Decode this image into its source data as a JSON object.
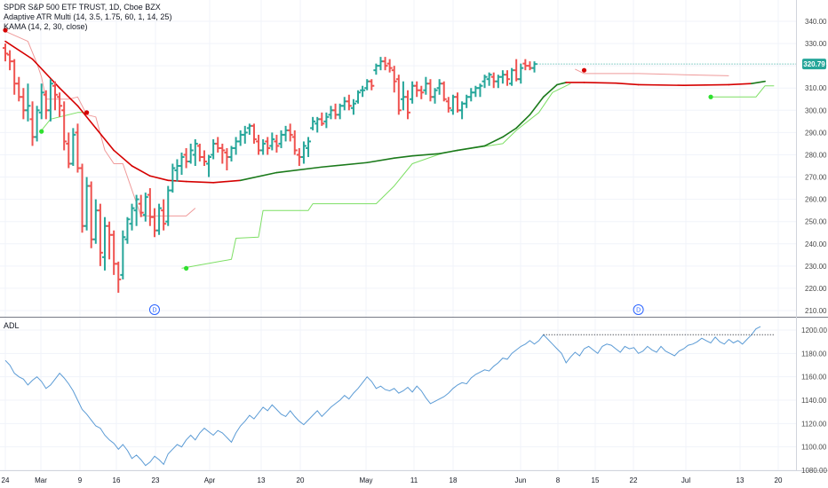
{
  "price_title": "SPDR S&P 500 ETF TRUST, 1D, Cboe BZX",
  "atr_label": "Adaptive ATR Multi (14, 3.5, 1.75, 60, 1, 14, 25)",
  "kama_label": "KAMA (14, 2, 30, close)",
  "adl_label": "ADL",
  "last_price_label": "320.79",
  "dividend_marker": "D",
  "colors": {
    "up": "#26a69a",
    "down": "#ef5350",
    "kama_up": "#1b7a1b",
    "kama_down": "#d50000",
    "atr_up": "#7ddf64",
    "atr_down": "#ef9a9a",
    "adl": "#5b9bd5",
    "dividend": "#2962ff",
    "grid": "#f0f3fa"
  },
  "chart_data": [
    {
      "type": "bar",
      "title": "SPDR S&P 500 ETF TRUST, 1D, Cboe BZX",
      "y_ticks": [
        210,
        220,
        230,
        240,
        250,
        260,
        270,
        280,
        290,
        300,
        310,
        320,
        330,
        340
      ],
      "ylim": [
        205,
        345
      ],
      "x_ticks": [
        "24",
        "Mar",
        "9",
        "16",
        "23",
        "Apr",
        "13",
        "20",
        "May",
        "11",
        "18",
        "Jun",
        "8",
        "15",
        "22",
        "Jul",
        "13",
        "20"
      ],
      "last_value": 320.79,
      "ohlc": [
        [
          328.0,
          330.0,
          322.0,
          325.5
        ],
        [
          325.0,
          327.0,
          318.0,
          322.0
        ],
        [
          322.0,
          323.0,
          307.0,
          312.0
        ],
        [
          312.0,
          315.0,
          304.0,
          306.0
        ],
        [
          306.0,
          310.0,
          296.0,
          300.0
        ],
        [
          300.0,
          312.0,
          295.0,
          302.0
        ],
        [
          296.0,
          304.0,
          284.0,
          288.0
        ],
        [
          288.0,
          302.0,
          286.0,
          300.0
        ],
        [
          299.0,
          312.0,
          296.0,
          308.0
        ],
        [
          307.0,
          309.0,
          296.0,
          300.0
        ],
        [
          300.0,
          314.0,
          295.0,
          312.0
        ],
        [
          311.0,
          313.0,
          300.0,
          307.0
        ],
        [
          306.0,
          308.0,
          297.0,
          302.0
        ],
        [
          300.0,
          304.0,
          282.0,
          286.0
        ],
        [
          285.0,
          290.0,
          274.0,
          276.0
        ],
        [
          276.0,
          292.0,
          275.0,
          289.0
        ],
        [
          290.0,
          294.0,
          272.0,
          274.0
        ],
        [
          274.0,
          276.0,
          245.0,
          248.0
        ],
        [
          248.0,
          270.0,
          246.0,
          266.0
        ],
        [
          266.0,
          268.0,
          238.0,
          242.0
        ],
        [
          242.0,
          260.0,
          240.0,
          255.0
        ],
        [
          255.0,
          258.0,
          230.0,
          236.0
        ],
        [
          234.0,
          252.0,
          228.0,
          248.0
        ],
        [
          248.0,
          250.0,
          233.0,
          244.0
        ],
        [
          244.0,
          246.0,
          226.0,
          231.0
        ],
        [
          231.0,
          232.0,
          218.0,
          224.0
        ],
        [
          226.0,
          246.0,
          224.0,
          243.0
        ],
        [
          242.0,
          252.0,
          240.0,
          251.0
        ],
        [
          249.0,
          258.0,
          246.0,
          256.0
        ],
        [
          255.0,
          262.0,
          248.0,
          260.0
        ],
        [
          258.0,
          262.0,
          252.0,
          254.0
        ],
        [
          253.0,
          263.0,
          250.0,
          261.0
        ],
        [
          262.0,
          265.0,
          248.0,
          252.0
        ],
        [
          252.0,
          256.0,
          243.0,
          246.0
        ],
        [
          246.0,
          258.0,
          244.0,
          256.0
        ],
        [
          255.0,
          260.0,
          246.0,
          249.0
        ],
        [
          250.0,
          266.0,
          248.0,
          264.0
        ],
        [
          264.0,
          276.0,
          263.0,
          274.0
        ],
        [
          273.0,
          278.0,
          268.0,
          275.0
        ],
        [
          275.0,
          281.0,
          271.0,
          279.0
        ],
        [
          280.0,
          283.0,
          274.0,
          277.0
        ],
        [
          277.0,
          285.0,
          276.0,
          282.0
        ],
        [
          280.0,
          287.0,
          275.0,
          285.0
        ],
        [
          284.0,
          285.0,
          277.0,
          279.0
        ],
        [
          279.0,
          282.0,
          275.0,
          277.0
        ],
        [
          276.0,
          280.0,
          270.0,
          279.0
        ],
        [
          280.0,
          287.0,
          278.0,
          285.0
        ],
        [
          285.0,
          288.0,
          281.0,
          283.0
        ],
        [
          283.0,
          285.0,
          276.0,
          282.0
        ],
        [
          281.0,
          283.0,
          273.0,
          279.0
        ],
        [
          279.0,
          284.0,
          277.0,
          283.0
        ],
        [
          283.0,
          288.0,
          280.0,
          286.0
        ],
        [
          286.0,
          291.0,
          284.0,
          289.0
        ],
        [
          289.0,
          293.0,
          285.0,
          290.0
        ],
        [
          292.0,
          294.0,
          289.0,
          293.0
        ],
        [
          293.0,
          294.0,
          285.0,
          287.0
        ],
        [
          286.0,
          289.0,
          280.0,
          282.0
        ],
        [
          282.0,
          287.0,
          280.0,
          285.0
        ],
        [
          286.0,
          288.0,
          280.0,
          283.0
        ],
        [
          284.0,
          290.0,
          282.0,
          287.0
        ],
        [
          286.0,
          289.0,
          281.0,
          284.0
        ],
        [
          285.0,
          291.0,
          283.0,
          289.0
        ],
        [
          289.0,
          293.0,
          286.0,
          291.0
        ],
        [
          291.0,
          294.0,
          286.0,
          289.0
        ],
        [
          288.0,
          291.0,
          280.0,
          282.0
        ],
        [
          280.0,
          283.0,
          275.0,
          279.0
        ],
        [
          279.0,
          286.0,
          276.0,
          284.0
        ],
        [
          283.0,
          288.0,
          279.0,
          286.0
        ],
        [
          292.0,
          297.0,
          291.0,
          295.0
        ],
        [
          294.0,
          297.0,
          290.0,
          296.0
        ],
        [
          296.0,
          299.0,
          293.0,
          294.0
        ],
        [
          295.0,
          299.0,
          292.0,
          297.0
        ],
        [
          298.0,
          302.0,
          296.0,
          300.0
        ],
        [
          300.0,
          303.0,
          296.0,
          298.0
        ],
        [
          298.0,
          303.0,
          296.0,
          302.0
        ],
        [
          302.0,
          306.0,
          300.0,
          304.0
        ],
        [
          304.0,
          307.0,
          300.0,
          302.0
        ],
        [
          301.0,
          305.0,
          298.0,
          303.0
        ],
        [
          304.0,
          309.0,
          303.0,
          308.0
        ],
        [
          309.0,
          311.0,
          306.0,
          309.0
        ],
        [
          310.0,
          314.0,
          309.0,
          313.0
        ],
        [
          313.0,
          314.0,
          309.0,
          311.0
        ],
        [
          318.0,
          321.0,
          316.0,
          320.0
        ],
        [
          320.0,
          324.0,
          318.0,
          322.0
        ],
        [
          322.0,
          324.0,
          318.0,
          320.0
        ],
        [
          321.0,
          323.0,
          317.0,
          319.0
        ],
        [
          318.0,
          320.0,
          308.0,
          313.0
        ],
        [
          314.0,
          316.0,
          298.0,
          300.0
        ],
        [
          305.0,
          313.0,
          300.0,
          306.0
        ],
        [
          306.0,
          309.0,
          296.0,
          299.0
        ],
        [
          305.0,
          313.0,
          303.0,
          311.0
        ],
        [
          311.0,
          313.0,
          306.0,
          309.0
        ],
        [
          309.0,
          311.0,
          305.0,
          308.0
        ],
        [
          309.0,
          315.0,
          307.0,
          312.0
        ],
        [
          312.0,
          314.0,
          304.0,
          306.0
        ],
        [
          306.0,
          310.0,
          303.0,
          309.0
        ],
        [
          310.0,
          314.0,
          307.0,
          312.0
        ],
        [
          312.0,
          313.0,
          304.0,
          305.0
        ],
        [
          304.0,
          306.0,
          299.0,
          301.0
        ],
        [
          300.0,
          307.0,
          298.0,
          306.0
        ],
        [
          306.0,
          308.0,
          299.0,
          300.0
        ],
        [
          300.0,
          304.0,
          296.0,
          303.0
        ],
        [
          303.0,
          307.0,
          301.0,
          306.0
        ],
        [
          306.0,
          310.0,
          304.0,
          308.0
        ],
        [
          308.0,
          311.0,
          306.0,
          310.0
        ],
        [
          310.0,
          312.0,
          306.0,
          311.0
        ],
        [
          313.0,
          316.0,
          310.0,
          315.0
        ],
        [
          314.0,
          317.0,
          311.0,
          316.0
        ],
        [
          315.0,
          317.0,
          310.0,
          313.0
        ],
        [
          313.0,
          316.0,
          310.0,
          315.0
        ],
        [
          315.0,
          318.0,
          312.0,
          316.0
        ],
        [
          316.0,
          318.0,
          311.0,
          314.0
        ],
        [
          312.0,
          319.0,
          311.0,
          318.0
        ],
        [
          318.0,
          323.0,
          313.0,
          314.0
        ],
        [
          314.0,
          321.0,
          312.0,
          319.0
        ],
        [
          321.0,
          323.0,
          318.0,
          320.0
        ],
        [
          320.0,
          322.0,
          318.0,
          319.0
        ],
        [
          319.0,
          322.0,
          317.0,
          320.79
        ]
      ],
      "kama": [
        [
          0,
          331.0
        ],
        [
          6,
          323.0
        ],
        [
          12,
          310.0
        ],
        [
          16,
          302.0
        ],
        [
          20,
          292.0
        ],
        [
          24,
          282.0
        ],
        [
          28,
          275.0
        ],
        [
          32,
          270.5
        ],
        [
          36,
          268.5
        ],
        [
          40,
          268.0
        ],
        [
          46,
          267.5
        ],
        [
          52,
          268.5
        ],
        [
          60,
          272.0
        ],
        [
          70,
          274.5
        ],
        [
          80,
          276.5
        ],
        [
          86,
          278.5
        ],
        [
          90,
          279.5
        ],
        [
          96,
          280.5
        ],
        [
          100,
          282.0
        ],
        [
          106,
          284.0
        ],
        [
          110,
          288.0
        ],
        [
          113,
          292.0
        ],
        [
          116,
          298.0
        ],
        [
          119,
          306.0
        ],
        [
          122,
          311.5
        ],
        [
          124,
          312.5
        ],
        [
          128,
          312.5
        ],
        [
          135,
          312.2
        ],
        [
          140,
          311.5
        ],
        [
          150,
          311.2
        ],
        [
          160,
          311.5
        ],
        [
          165,
          312.0
        ],
        [
          168,
          313.0
        ]
      ],
      "kama_colors": [
        "down",
        "down",
        "down",
        "down",
        "down",
        "down",
        "down",
        "down",
        "down",
        "down",
        "down",
        "up",
        "up",
        "up",
        "up",
        "up",
        "up",
        "up",
        "up",
        "up",
        "up",
        "up",
        "up",
        "up",
        "up",
        "down",
        "down",
        "down",
        "down",
        "down",
        "down",
        "up",
        "up"
      ],
      "atr_red": [
        [
          [
            0,
            335.5
          ],
          [
            5,
            331.0
          ],
          [
            7,
            321.0
          ],
          [
            8,
            315.0
          ],
          [
            9,
            305.0
          ],
          [
            14,
            305.0
          ],
          [
            16,
            306.0
          ],
          [
            18,
            298.0
          ],
          [
            20,
            297.0
          ],
          [
            22,
            282.0
          ],
          [
            24,
            276.0
          ],
          [
            26,
            276.0
          ],
          [
            30,
            252.5
          ],
          [
            40,
            252.5
          ],
          [
            42,
            256.0
          ]
        ],
        [
          [
            126,
            318.5
          ],
          [
            128,
            316.5
          ],
          [
            140,
            316.5
          ],
          [
            150,
            316.0
          ],
          [
            160,
            315.5
          ]
        ]
      ],
      "atr_green": [
        [
          [
            8,
            291.0
          ],
          [
            10,
            296.0
          ],
          [
            16,
            299.0
          ],
          [
            18,
            299.0
          ]
        ],
        [
          [
            39,
            229.0
          ],
          [
            43,
            230.5
          ],
          [
            50,
            233.0
          ],
          [
            51,
            242.5
          ],
          [
            56,
            243.0
          ],
          [
            57,
            255.0
          ],
          [
            67,
            255.0
          ],
          [
            68,
            258.0
          ],
          [
            82,
            258.0
          ],
          [
            84,
            262.0
          ],
          [
            86,
            266.0
          ],
          [
            90,
            276.0
          ],
          [
            97,
            281.0
          ],
          [
            110,
            285.0
          ],
          [
            113,
            291.0
          ],
          [
            118,
            299.0
          ],
          [
            121,
            308.0
          ],
          [
            125,
            312.0
          ]
        ],
        [
          [
            156,
            306.0
          ],
          [
            166,
            306.0
          ],
          [
            168,
            311.0
          ],
          [
            170,
            311.0
          ]
        ]
      ],
      "atr_signals": [
        {
          "type": "down",
          "x": 0,
          "y": 336.0
        },
        {
          "type": "up",
          "x": 8,
          "y": 290.5
        },
        {
          "type": "down",
          "x": 18,
          "y": 299.0
        },
        {
          "type": "up",
          "x": 40,
          "y": 229.0
        },
        {
          "type": "down",
          "x": 128,
          "y": 318.0
        },
        {
          "type": "up",
          "x": 156,
          "y": 306.0
        }
      ],
      "dividends": [
        33,
        140
      ]
    },
    {
      "type": "line",
      "title": "ADL",
      "y_ticks": [
        1080.0,
        1100.0,
        1120.0,
        1140.0,
        1160.0,
        1180.0,
        1200.0
      ],
      "ylim": [
        1074,
        1208
      ],
      "values": [
        1174,
        1170,
        1163,
        1160,
        1158,
        1153,
        1157,
        1160,
        1156,
        1150,
        1153,
        1158,
        1163,
        1159,
        1154,
        1148,
        1140,
        1132,
        1128,
        1123,
        1118,
        1116,
        1110,
        1106,
        1103,
        1098,
        1102,
        1097,
        1090,
        1093,
        1089,
        1084,
        1087,
        1092,
        1089,
        1085,
        1094,
        1098,
        1102,
        1100,
        1106,
        1110,
        1106,
        1112,
        1116,
        1113,
        1110,
        1114,
        1112,
        1108,
        1104,
        1112,
        1118,
        1122,
        1127,
        1124,
        1129,
        1134,
        1131,
        1136,
        1132,
        1128,
        1126,
        1131,
        1126,
        1122,
        1119,
        1123,
        1127,
        1131,
        1126,
        1130,
        1134,
        1137,
        1140,
        1144,
        1141,
        1146,
        1150,
        1155,
        1160,
        1156,
        1150,
        1152,
        1149,
        1148,
        1150,
        1146,
        1148,
        1151,
        1147,
        1152,
        1148,
        1142,
        1137,
        1139,
        1141,
        1143,
        1146,
        1150,
        1153,
        1155,
        1154,
        1159,
        1162,
        1164,
        1166,
        1165,
        1169,
        1172,
        1176,
        1175,
        1180,
        1183,
        1186,
        1188,
        1191,
        1188,
        1191,
        1196,
        1192,
        1188,
        1184,
        1180,
        1172,
        1177,
        1181,
        1178,
        1184,
        1186,
        1183,
        1180,
        1186,
        1188,
        1187,
        1184,
        1181,
        1186,
        1184,
        1185,
        1180,
        1182,
        1186,
        1183,
        1181,
        1186,
        1182,
        1180,
        1178,
        1182,
        1184,
        1187,
        1188,
        1190,
        1193,
        1191,
        1189,
        1194,
        1190,
        1188,
        1192,
        1189,
        1191,
        1188,
        1192,
        1196,
        1201,
        1203
      ],
      "reference_level": 1196
    }
  ]
}
